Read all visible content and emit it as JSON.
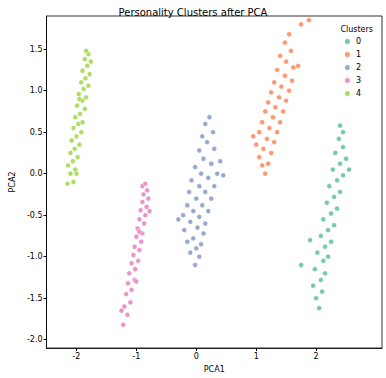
{
  "chart_data": {
    "type": "scatter",
    "title": "Personality Clusters after PCA",
    "x_label": "PCA1",
    "y_label": "PCA2",
    "legend": "upper right",
    "legend_title": "Clusters",
    "grid": false,
    "marker": "o",
    "xlim": [
      -2.5,
      3.1
    ],
    "xticks": [
      -2,
      -1,
      0,
      1,
      2
    ],
    "ylim": [
      -2.1,
      1.9
    ],
    "yticks": [
      {
        "value": -2,
        "label": "-2.0"
      },
      -1.5,
      {
        "value": -1,
        "label": "-1.0"
      },
      -0.5,
      {
        "value": 0,
        "label": "0.0"
      },
      0.5,
      {
        "value": 1,
        "label": "1.0"
      },
      1.5
    ],
    "series": [
      {
        "name": "0",
        "color": "#66c2a5",
        "values": [
          [
            2.05,
            -1.62
          ],
          [
            2.0,
            -1.5
          ],
          [
            2.1,
            -1.42
          ],
          [
            1.95,
            -1.35
          ],
          [
            2.08,
            -1.28
          ],
          [
            2.15,
            -1.2
          ],
          [
            1.98,
            -1.15
          ],
          [
            2.12,
            -1.05
          ],
          [
            2.2,
            -1.0
          ],
          [
            2.02,
            -0.95
          ],
          [
            2.15,
            -0.88
          ],
          [
            2.25,
            -0.82
          ],
          [
            2.08,
            -0.75
          ],
          [
            2.2,
            -0.68
          ],
          [
            2.3,
            -0.62
          ],
          [
            2.12,
            -0.55
          ],
          [
            2.25,
            -0.48
          ],
          [
            2.35,
            -0.42
          ],
          [
            2.18,
            -0.35
          ],
          [
            2.3,
            -0.28
          ],
          [
            2.4,
            -0.22
          ],
          [
            2.22,
            -0.15
          ],
          [
            2.35,
            -0.08
          ],
          [
            2.45,
            -0.02
          ],
          [
            2.28,
            0.05
          ],
          [
            2.4,
            0.12
          ],
          [
            2.5,
            0.18
          ],
          [
            2.32,
            0.25
          ],
          [
            2.45,
            0.32
          ],
          [
            2.38,
            0.42
          ],
          [
            2.45,
            0.5
          ],
          [
            2.4,
            0.58
          ],
          [
            1.75,
            -1.1
          ],
          [
            1.9,
            -0.8
          ],
          [
            2.55,
            0.05
          ]
        ]
      },
      {
        "name": "1",
        "color": "#fc8d62",
        "values": [
          [
            1.15,
            0.0
          ],
          [
            1.1,
            0.1
          ],
          [
            1.2,
            0.12
          ],
          [
            1.05,
            0.2
          ],
          [
            1.25,
            0.25
          ],
          [
            1.12,
            0.3
          ],
          [
            1.0,
            0.35
          ],
          [
            1.3,
            0.38
          ],
          [
            1.18,
            0.42
          ],
          [
            1.05,
            0.5
          ],
          [
            1.35,
            0.5
          ],
          [
            1.22,
            0.55
          ],
          [
            1.1,
            0.62
          ],
          [
            1.4,
            0.62
          ],
          [
            1.28,
            0.68
          ],
          [
            1.15,
            0.75
          ],
          [
            1.45,
            0.75
          ],
          [
            1.32,
            0.8
          ],
          [
            1.2,
            0.86
          ],
          [
            1.5,
            0.88
          ],
          [
            1.38,
            0.92
          ],
          [
            1.25,
            0.98
          ],
          [
            1.55,
            1.0
          ],
          [
            1.42,
            1.05
          ],
          [
            1.3,
            1.1
          ],
          [
            1.6,
            1.12
          ],
          [
            1.48,
            1.18
          ],
          [
            1.35,
            1.25
          ],
          [
            1.62,
            1.28
          ],
          [
            1.5,
            1.35
          ],
          [
            1.4,
            1.42
          ],
          [
            1.58,
            1.48
          ],
          [
            1.48,
            1.58
          ],
          [
            1.55,
            1.68
          ],
          [
            1.75,
            1.8
          ],
          [
            1.88,
            1.85
          ],
          [
            0.95,
            0.45
          ],
          [
            1.7,
            1.3
          ]
        ]
      },
      {
        "name": "2",
        "color": "#8da0cb",
        "values": [
          [
            -0.02,
            -1.1
          ],
          [
            0.05,
            -1.0
          ],
          [
            -0.1,
            -0.95
          ],
          [
            0.0,
            -0.9
          ],
          [
            -0.15,
            -0.82
          ],
          [
            0.08,
            -0.85
          ],
          [
            -0.05,
            -0.78
          ],
          [
            0.12,
            -0.72
          ],
          [
            -0.2,
            -0.68
          ],
          [
            0.02,
            -0.65
          ],
          [
            -0.1,
            -0.58
          ],
          [
            0.15,
            -0.6
          ],
          [
            -0.22,
            -0.5
          ],
          [
            0.05,
            -0.52
          ],
          [
            -0.05,
            -0.45
          ],
          [
            0.2,
            -0.45
          ],
          [
            -0.15,
            -0.38
          ],
          [
            0.1,
            -0.38
          ],
          [
            0.0,
            -0.3
          ],
          [
            0.25,
            -0.3
          ],
          [
            -0.12,
            -0.22
          ],
          [
            0.15,
            -0.22
          ],
          [
            0.05,
            -0.15
          ],
          [
            0.3,
            -0.15
          ],
          [
            -0.08,
            -0.08
          ],
          [
            0.2,
            -0.05
          ],
          [
            0.08,
            0.0
          ],
          [
            0.35,
            0.0
          ],
          [
            -0.02,
            0.08
          ],
          [
            0.25,
            0.12
          ],
          [
            0.12,
            0.18
          ],
          [
            0.4,
            0.15
          ],
          [
            0.05,
            0.28
          ],
          [
            0.3,
            0.3
          ],
          [
            0.18,
            0.38
          ],
          [
            0.1,
            0.45
          ],
          [
            0.28,
            0.5
          ],
          [
            0.15,
            0.6
          ],
          [
            0.22,
            0.68
          ],
          [
            0.45,
            -0.02
          ],
          [
            -0.3,
            -0.55
          ]
        ]
      },
      {
        "name": "3",
        "color": "#e78ac3",
        "values": [
          [
            -1.22,
            -1.82
          ],
          [
            -1.15,
            -1.7
          ],
          [
            -1.2,
            -1.6
          ],
          [
            -1.1,
            -1.55
          ],
          [
            -1.17,
            -1.45
          ],
          [
            -1.08,
            -1.4
          ],
          [
            -1.14,
            -1.32
          ],
          [
            -1.03,
            -1.28
          ],
          [
            -1.12,
            -1.2
          ],
          [
            -1.02,
            -1.15
          ],
          [
            -1.08,
            -1.08
          ],
          [
            -0.97,
            -1.05
          ],
          [
            -1.05,
            -0.98
          ],
          [
            -0.95,
            -0.92
          ],
          [
            -1.03,
            -0.88
          ],
          [
            -0.92,
            -0.82
          ],
          [
            -1.0,
            -0.76
          ],
          [
            -0.9,
            -0.72
          ],
          [
            -0.98,
            -0.66
          ],
          [
            -0.87,
            -0.6
          ],
          [
            -0.95,
            -0.55
          ],
          [
            -0.85,
            -0.5
          ],
          [
            -0.93,
            -0.44
          ],
          [
            -0.83,
            -0.4
          ],
          [
            -0.9,
            -0.34
          ],
          [
            -0.8,
            -0.3
          ],
          [
            -0.88,
            -0.25
          ],
          [
            -0.82,
            -0.2
          ],
          [
            -0.9,
            -0.15
          ],
          [
            -0.85,
            -0.12
          ],
          [
            -1.25,
            -1.65
          ],
          [
            -0.78,
            -0.45
          ],
          [
            -1.0,
            -1.3
          ],
          [
            -0.95,
            -0.7
          ]
        ]
      },
      {
        "name": "4",
        "color": "#a6d854",
        "values": [
          [
            -2.15,
            -0.12
          ],
          [
            -2.05,
            -0.1
          ],
          [
            -2.1,
            0.0
          ],
          [
            -2.02,
            0.05
          ],
          [
            -2.14,
            0.1
          ],
          [
            -2.06,
            0.15
          ],
          [
            -1.98,
            0.2
          ],
          [
            -2.1,
            0.25
          ],
          [
            -2.03,
            0.3
          ],
          [
            -1.95,
            0.35
          ],
          [
            -2.08,
            0.4
          ],
          [
            -2.0,
            0.45
          ],
          [
            -1.92,
            0.5
          ],
          [
            -2.05,
            0.55
          ],
          [
            -1.97,
            0.6
          ],
          [
            -1.9,
            0.62
          ],
          [
            -2.02,
            0.68
          ],
          [
            -1.94,
            0.72
          ],
          [
            -1.86,
            0.78
          ],
          [
            -1.99,
            0.82
          ],
          [
            -1.9,
            0.88
          ],
          [
            -1.84,
            0.92
          ],
          [
            -1.96,
            0.96
          ],
          [
            -1.88,
            1.02
          ],
          [
            -1.8,
            1.06
          ],
          [
            -1.92,
            1.1
          ],
          [
            -1.85,
            1.15
          ],
          [
            -1.78,
            1.2
          ],
          [
            -1.9,
            1.24
          ],
          [
            -1.82,
            1.3
          ],
          [
            -1.76,
            1.35
          ],
          [
            -1.86,
            1.38
          ],
          [
            -1.8,
            1.44
          ],
          [
            -1.84,
            1.48
          ],
          [
            -2.0,
            0.0
          ],
          [
            -1.95,
            0.9
          ]
        ]
      }
    ]
  }
}
